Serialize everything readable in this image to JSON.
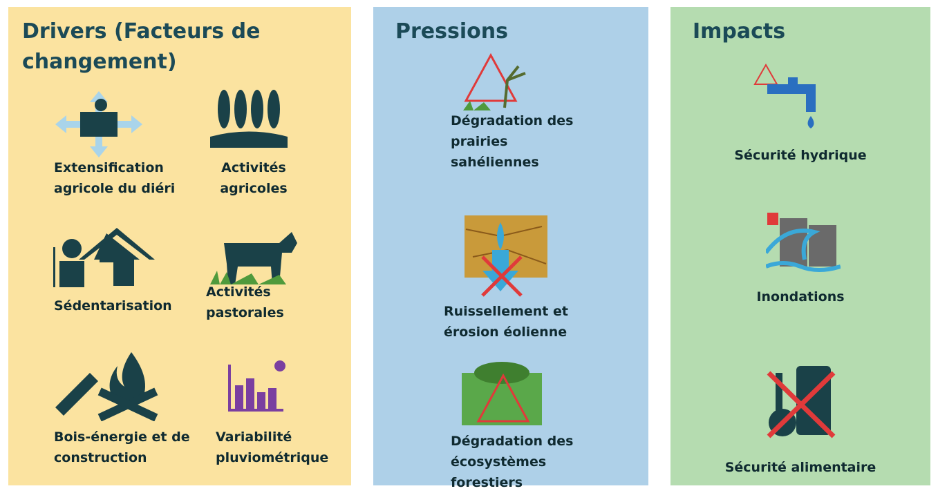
{
  "panels": [
    {
      "title": "Drivers (Facteurs de changement)",
      "items": [
        {
          "label": "Extensification agricole du diéri"
        },
        {
          "label": "Activités agricoles"
        },
        {
          "label": "Sédentarisation"
        },
        {
          "label": "Activités pastorales"
        },
        {
          "label": "Bois-énergie et de construction"
        },
        {
          "label": "Variabilité pluviométrique"
        }
      ]
    },
    {
      "title": "Pressions",
      "items": [
        {
          "label": "Dégradation des prairies sahéliennes"
        },
        {
          "label": "Ruissellement et érosion éolienne"
        },
        {
          "label": "Dégradation des écosystèmes forestiers"
        }
      ]
    },
    {
      "title": "Impacts",
      "items": [
        {
          "label": "Sécurité hydrique"
        },
        {
          "label": "Inondations"
        },
        {
          "label": "Sécurité alimentaire"
        }
      ]
    }
  ]
}
